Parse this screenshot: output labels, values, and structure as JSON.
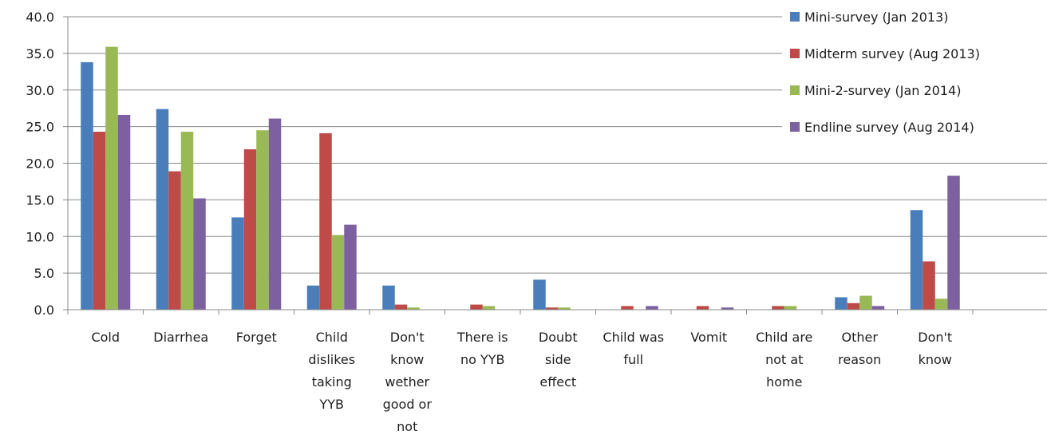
{
  "chart_data": {
    "type": "bar",
    "title": "",
    "xlabel": "",
    "ylabel": "",
    "ylim": [
      0,
      40
    ],
    "yticks": [
      "0.0",
      "5.0",
      "10.0",
      "15.0",
      "20.0",
      "25.0",
      "30.0",
      "35.0",
      "40.0"
    ],
    "grid": true,
    "legend_position": "top-right",
    "categories": [
      [
        "Cold"
      ],
      [
        "Diarrhea"
      ],
      [
        "Forget"
      ],
      [
        "Child",
        "dislikes",
        "taking",
        "YYB"
      ],
      [
        "Don't",
        "know",
        "wether",
        "good or",
        "not"
      ],
      [
        "There is",
        "no YYB"
      ],
      [
        "Doubt",
        "side",
        "effect"
      ],
      [
        "Child was",
        "full"
      ],
      [
        "Vomit"
      ],
      [
        "Child are",
        "not at",
        "home"
      ],
      [
        "Other",
        "reason"
      ],
      [
        "Don't",
        "know"
      ]
    ],
    "series": [
      {
        "name": "Mini-survey (Jan 2013)",
        "color": "#4a7ebb",
        "values": [
          33.8,
          27.4,
          12.6,
          3.3,
          3.3,
          0.0,
          4.1,
          0.0,
          0.0,
          0.0,
          1.7,
          13.6
        ]
      },
      {
        "name": "Midterm survey (Aug 2013)",
        "color": "#be4b48",
        "values": [
          24.3,
          18.9,
          21.9,
          24.1,
          0.7,
          0.7,
          0.3,
          0.5,
          0.5,
          0.5,
          0.9,
          6.6
        ]
      },
      {
        "name": "Mini-2-survey (Jan 2014)",
        "color": "#98b954",
        "values": [
          35.9,
          24.3,
          24.5,
          10.2,
          0.3,
          0.5,
          0.3,
          0.0,
          0.0,
          0.5,
          1.9,
          1.5
        ]
      },
      {
        "name": "Endline survey (Aug 2014)",
        "color": "#7d60a0",
        "values": [
          26.6,
          15.2,
          26.1,
          11.6,
          0.0,
          0.0,
          0.0,
          0.5,
          0.3,
          0.0,
          0.5,
          18.3
        ]
      }
    ]
  }
}
